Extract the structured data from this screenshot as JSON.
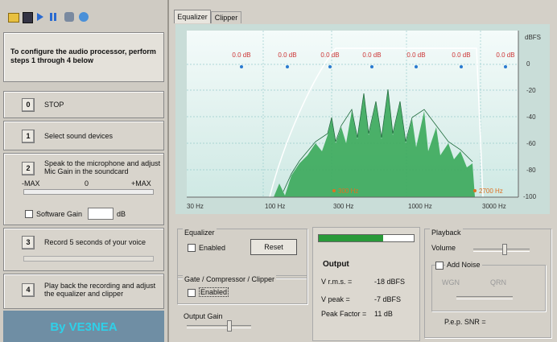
{
  "intro": "To configure the audio processor, perform steps 1 through 4 below",
  "steps": [
    {
      "number": "0",
      "label": "STOP"
    },
    {
      "number": "1",
      "label": "Select sound devices"
    },
    {
      "number": "2",
      "label": "Speak to the microphone and adjust Mic Gain in the soundcard"
    },
    {
      "number": "3",
      "label": "Record 5 seconds of your voice"
    },
    {
      "number": "4",
      "label": "Play back the recording and adjust the equalizer and clipper"
    }
  ],
  "mic_gain": {
    "min_label": "-MAX",
    "mid_label": "0",
    "max_label": "+MAX",
    "software_gain": "Software Gain",
    "unit": "dB"
  },
  "footer": "By VE3NEA",
  "tabs": [
    "Equalizer",
    "Clipper"
  ],
  "equalizer_chart": {
    "band_labels": [
      "0.0 dB",
      "0.0 dB",
      "0.0 dB",
      "0.0 dB",
      "0.0 dB",
      "0.0 dB",
      "0.0 dB"
    ],
    "y_unit": "dBFS",
    "y_labels": [
      "0",
      "-20",
      "-40",
      "-60",
      "-80",
      "-100"
    ],
    "x_labels": [
      "30 Hz",
      "100 Hz",
      "300 Hz",
      "1000 Hz",
      "3000 Hz"
    ],
    "low_cut": "300 Hz",
    "high_cut": "2700 Hz"
  },
  "equalizer_group": {
    "title": "Equalizer",
    "enabled": "Enabled",
    "reset": "Reset"
  },
  "gate_group": {
    "title": "Gate / Compressor / Clipper",
    "enabled": "Enabled"
  },
  "output_gain": "Output Gain",
  "output": {
    "title": "Output",
    "rows": [
      [
        "V r.m.s. =",
        "-18 dBFS"
      ],
      [
        "V peak =",
        "-7 dBFS"
      ],
      [
        "Peak Factor =",
        "11 dB"
      ]
    ]
  },
  "playback": {
    "title": "Playback",
    "volume": "Volume",
    "add_noise": "Add Noise",
    "options": [
      "WGN",
      "QRN"
    ],
    "snr": "P.e.p. SNR ="
  }
}
